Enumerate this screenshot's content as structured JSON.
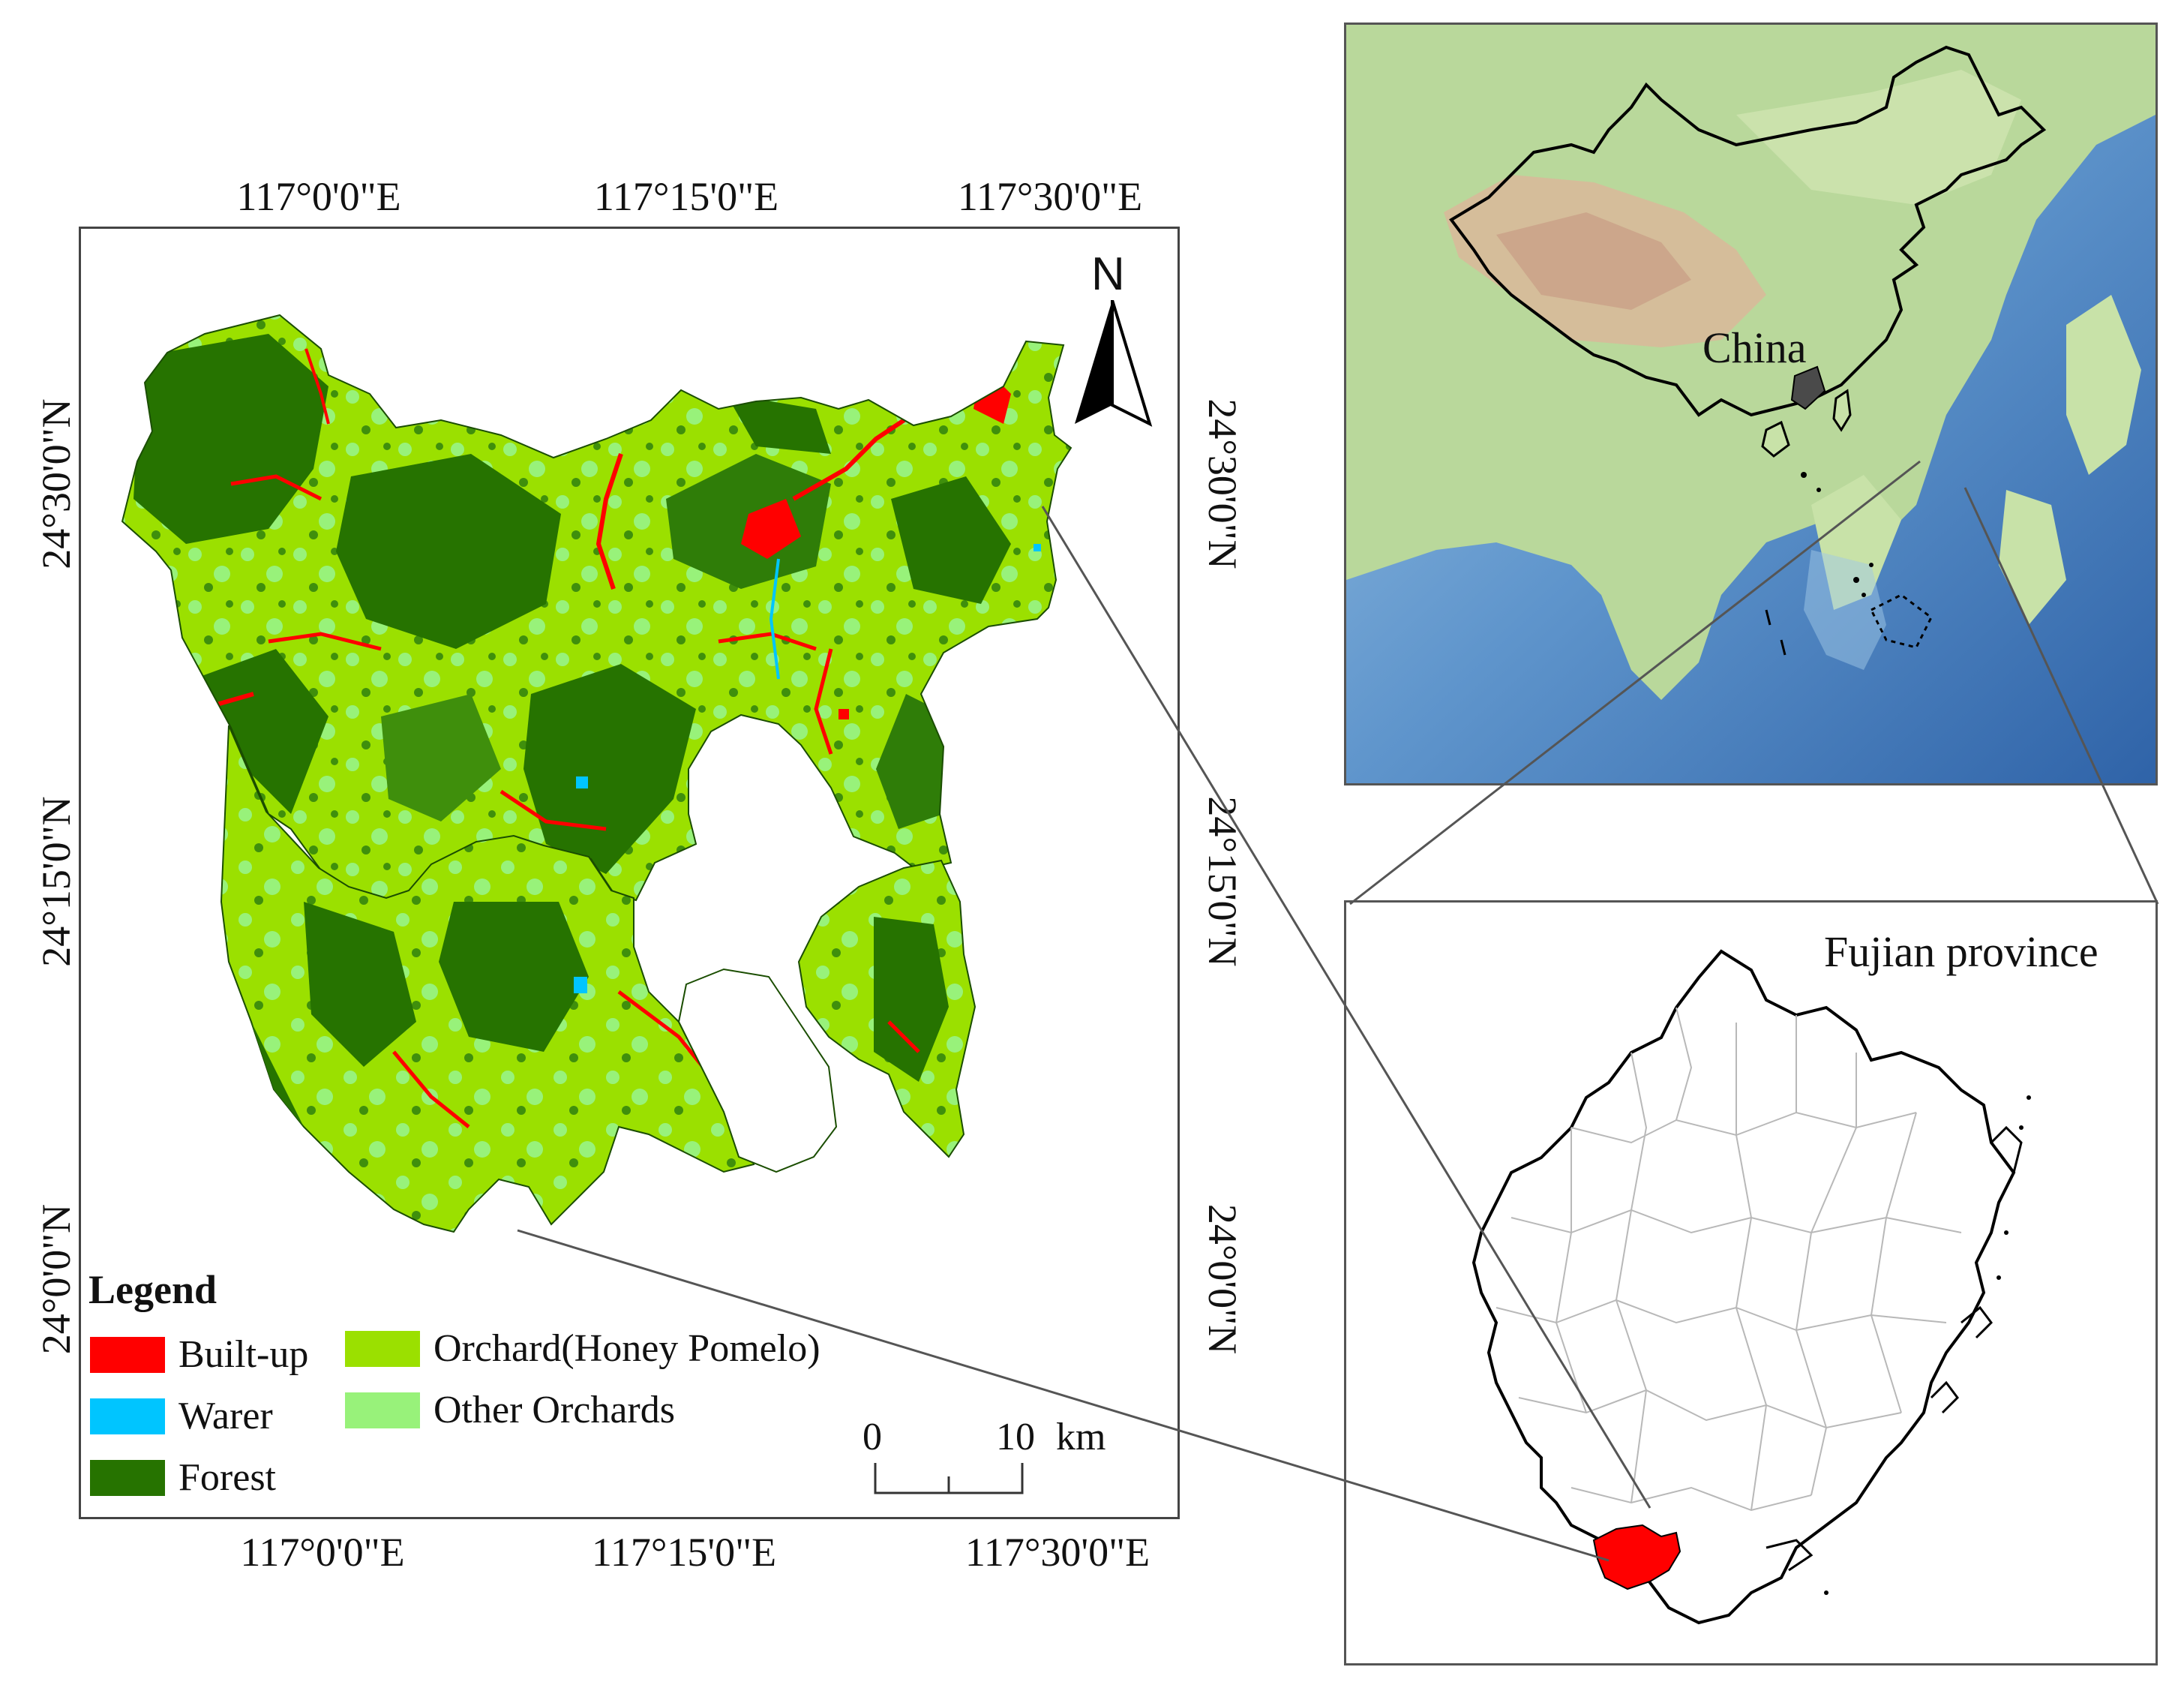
{
  "main_map": {
    "top_longitudes": [
      "117°0'0\"E",
      "117°15'0\"E",
      "117°30'0\"E"
    ],
    "bottom_longitudes": [
      "117°0'0\"E",
      "117°15'0\"E",
      "117°30'0\"E"
    ],
    "left_latitudes": [
      "24°30'0\"N",
      "24°15'0\"N",
      "24°0'0\"N"
    ],
    "right_latitudes": [
      "24°30'0\"N",
      "24°15'0\"N",
      "24°0'0\"N"
    ],
    "north_label": "N",
    "legend": {
      "title": "Legend",
      "items": [
        {
          "label": "Built-up",
          "color": "#ff0000"
        },
        {
          "label": "Warer",
          "color": "#00c5ff"
        },
        {
          "label": "Forest",
          "color": "#267300"
        },
        {
          "label": "Orchard(Honey Pomelo)",
          "color": "#9be000"
        },
        {
          "label": "Other Orchards",
          "color": "#98f27a"
        }
      ]
    },
    "scale": {
      "zero": "0",
      "ten": "10",
      "unit": "km"
    }
  },
  "china_map": {
    "label": "China"
  },
  "fujian_map": {
    "label": "Fujian province",
    "highlight_color": "#ff0000"
  }
}
